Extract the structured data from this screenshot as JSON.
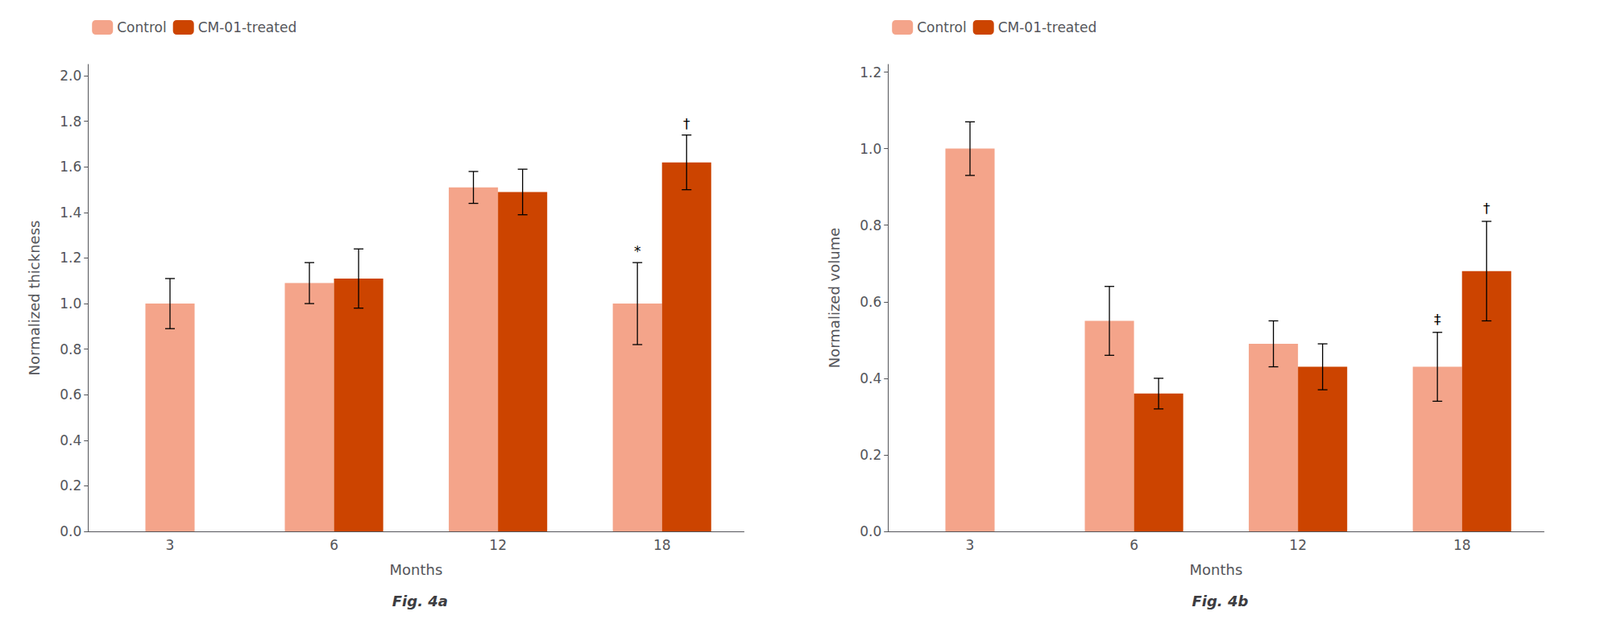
{
  "chart_data": [
    {
      "type": "bar",
      "title": "Fig. 4a",
      "xlabel": "Months",
      "ylabel": "Normalized thickness",
      "categories": [
        "3",
        "6",
        "12",
        "18"
      ],
      "series": [
        {
          "name": "Control",
          "color": "#F4A48A",
          "values": [
            1.0,
            1.09,
            1.51,
            1.0
          ],
          "errors": [
            0.11,
            0.09,
            0.07,
            0.18
          ]
        },
        {
          "name": "CM-01-treated",
          "color": "#CC4400",
          "values": [
            null,
            1.11,
            1.49,
            1.62
          ],
          "errors": [
            null,
            0.13,
            0.1,
            0.12
          ]
        }
      ],
      "annotations": [
        {
          "text": "*",
          "category": "18",
          "series": "Control",
          "y": 1.2
        },
        {
          "text": "†",
          "category": "18",
          "series": "CM-01-treated",
          "y": 1.76
        }
      ],
      "ylim": [
        0.0,
        2.05
      ],
      "yticks": [
        {
          "value": 0.0,
          "label": "0.0"
        },
        0.2,
        0.4,
        0.6,
        0.8,
        {
          "value": 1.0,
          "label": "1.0"
        },
        1.2,
        1.4,
        1.6,
        1.8,
        {
          "value": 2.0,
          "label": "2.0"
        }
      ],
      "grid": false,
      "legend": "upper left"
    },
    {
      "type": "bar",
      "title": "Fig. 4b",
      "xlabel": "Months",
      "ylabel": "Normalized volume",
      "categories": [
        "3",
        "6",
        "12",
        "18"
      ],
      "series": [
        {
          "name": "Control",
          "color": "#F4A48A",
          "values": [
            1.0,
            0.55,
            0.49,
            0.43
          ],
          "errors": [
            0.07,
            0.09,
            0.06,
            0.09
          ]
        },
        {
          "name": "CM-01-treated",
          "color": "#CC4400",
          "values": [
            null,
            0.36,
            0.43,
            0.68
          ],
          "errors": [
            null,
            0.04,
            0.06,
            0.13
          ]
        }
      ],
      "annotations": [
        {
          "text": "‡",
          "category": "18",
          "series": "Control",
          "y": 0.535
        },
        {
          "text": "†",
          "category": "18",
          "series": "CM-01-treated",
          "y": 0.825
        }
      ],
      "ylim": [
        0.0,
        1.22
      ],
      "yticks": [
        {
          "value": 0.0,
          "label": "0.0"
        },
        0.2,
        0.4,
        0.6,
        0.8,
        {
          "value": 1.0,
          "label": "1.0"
        },
        1.2
      ],
      "grid": false,
      "legend": "upper left"
    }
  ]
}
